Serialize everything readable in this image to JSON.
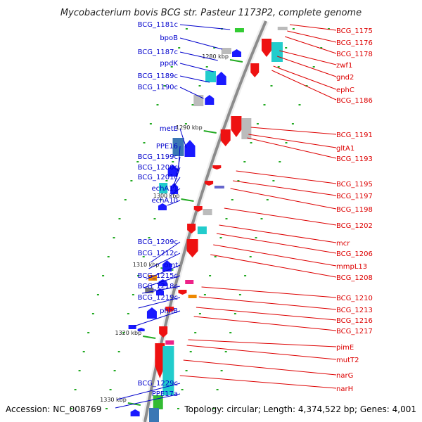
{
  "header": {
    "title": "Mycobacterium bovis BCG str. Pasteur 1173P2, complete genome"
  },
  "footer": {
    "accession": "Accession: NC_008769",
    "summary": "Topology: circular; Length: 4,374,522 bp; Genes: 4,001"
  },
  "colors": {
    "forward_label": "#0000cc",
    "reverse_label": "#dd0000",
    "forward_gene": "#1a1aff",
    "reverse_gene": "#ee1111",
    "backbone": "#888888",
    "tick": "#22aa22"
  },
  "scale_ticks": [
    "1280 kbp",
    "1290 kbp",
    "1300 kbp",
    "1310 kbp",
    "1320 kbp",
    "1330 kbp"
  ],
  "left_labels": [
    "BCG_1181c",
    "bpoB",
    "BCG_1187c",
    "ppdK",
    "BCG_1189c",
    "BCG_1190c",
    "metE",
    "PPE16",
    "BCG_1199c",
    "BCG_1200c",
    "BCG_1201c",
    "echA11",
    "echA10",
    "BCG_1209c",
    "BCG_1212c",
    "omt",
    "BCG_1215c",
    "BCG_1218c",
    "BCG_1219c",
    "phhB",
    "BCG_1229c",
    "PPE17a"
  ],
  "right_labels": [
    "BCG_1175",
    "BCG_1176",
    "BCG_1178",
    "zwf1",
    "gnd2",
    "ephC",
    "BCG_1186",
    "BCG_1191",
    "gltA1",
    "BCG_1193",
    "BCG_1195",
    "BCG_1197",
    "BCG_1198",
    "BCG_1202",
    "mcr",
    "BCG_1206",
    "mmpL13",
    "BCG_1208",
    "BCG_1210",
    "BCG_1213",
    "BCG_1216",
    "BCG_1217",
    "pimE",
    "mutT2",
    "narG",
    "narH"
  ]
}
